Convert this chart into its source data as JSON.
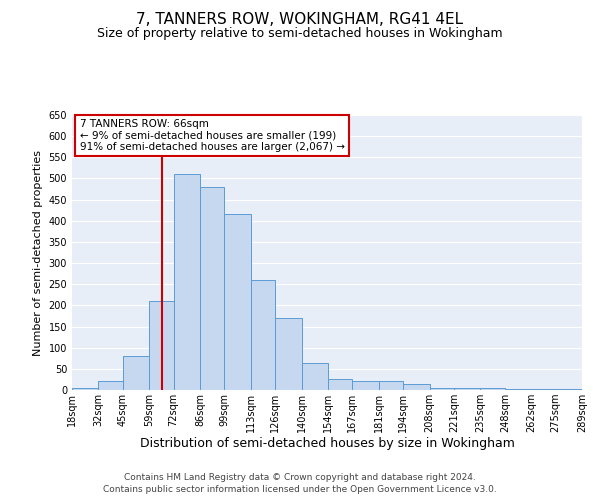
{
  "title": "7, TANNERS ROW, WOKINGHAM, RG41 4EL",
  "subtitle": "Size of property relative to semi-detached houses in Wokingham",
  "xlabel": "Distribution of semi-detached houses by size in Wokingham",
  "ylabel": "Number of semi-detached properties",
  "bar_color": "#c5d8f0",
  "bar_edge_color": "#5b9bd5",
  "background_color": "#e8eef8",
  "grid_color": "#ffffff",
  "vline_x": 66,
  "vline_color": "#cc0000",
  "annotation_title": "7 TANNERS ROW: 66sqm",
  "annotation_line1": "← 9% of semi-detached houses are smaller (199)",
  "annotation_line2": "91% of semi-detached houses are larger (2,067) →",
  "annotation_box_color": "#ffffff",
  "annotation_box_edge": "#cc0000",
  "bin_edges": [
    18,
    32,
    45,
    59,
    72,
    86,
    99,
    113,
    126,
    140,
    154,
    167,
    181,
    194,
    208,
    221,
    235,
    248,
    262,
    275,
    289
  ],
  "bar_heights": [
    5,
    22,
    80,
    210,
    510,
    480,
    415,
    260,
    170,
    65,
    27,
    22,
    22,
    14,
    5,
    5,
    5,
    3,
    3,
    3
  ],
  "tick_labels": [
    "18sqm",
    "32sqm",
    "45sqm",
    "59sqm",
    "72sqm",
    "86sqm",
    "99sqm",
    "113sqm",
    "126sqm",
    "140sqm",
    "154sqm",
    "167sqm",
    "181sqm",
    "194sqm",
    "208sqm",
    "221sqm",
    "235sqm",
    "248sqm",
    "262sqm",
    "275sqm",
    "289sqm"
  ],
  "ylim": [
    0,
    650
  ],
  "yticks": [
    0,
    50,
    100,
    150,
    200,
    250,
    300,
    350,
    400,
    450,
    500,
    550,
    600,
    650
  ],
  "footnote1": "Contains HM Land Registry data © Crown copyright and database right 2024.",
  "footnote2": "Contains public sector information licensed under the Open Government Licence v3.0.",
  "title_fontsize": 11,
  "subtitle_fontsize": 9,
  "xlabel_fontsize": 9,
  "ylabel_fontsize": 8,
  "tick_fontsize": 7,
  "footnote_fontsize": 6.5
}
